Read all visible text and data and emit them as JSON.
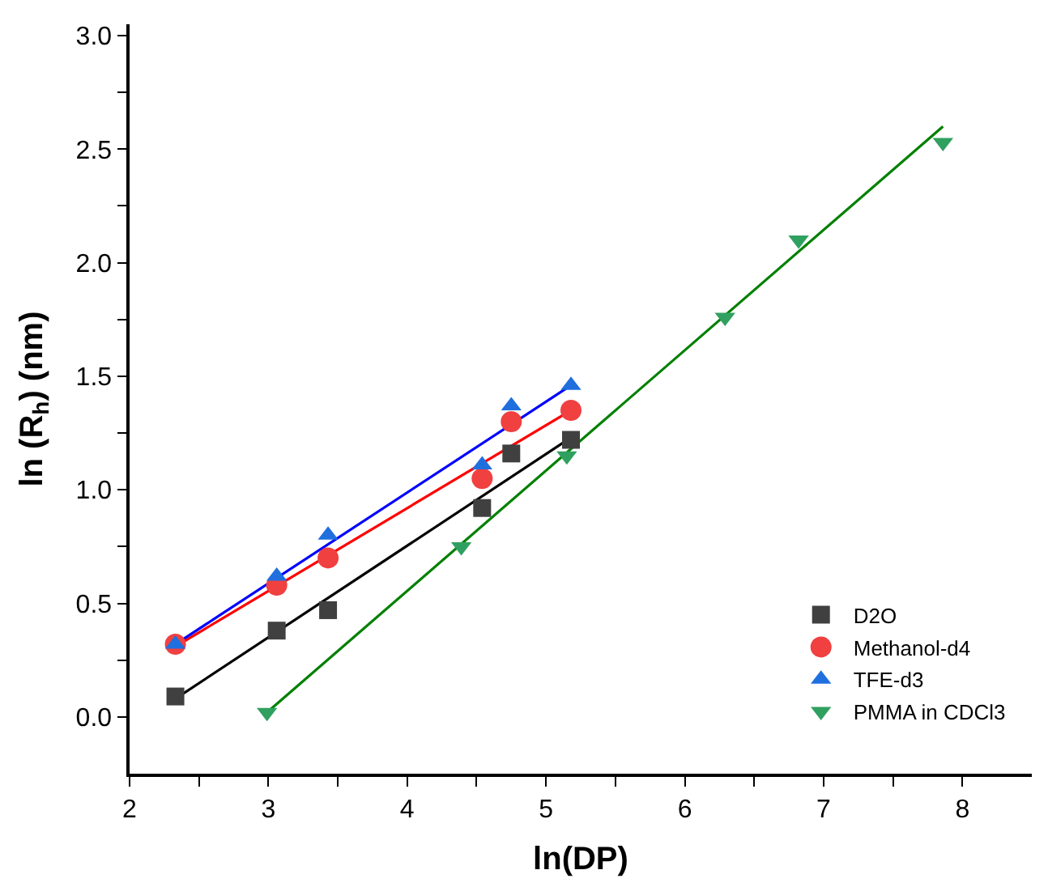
{
  "chart_data": {
    "type": "scatter",
    "xlabel": "ln(DP)",
    "ylabel": "ln (R$_{h}$) (nm)",
    "xlim": [
      2,
      8.5
    ],
    "ylim": [
      -0.25,
      3.05
    ],
    "xticks": [
      2,
      {
        "value": 2.5,
        "label": null
      },
      3,
      {
        "value": 3.5,
        "label": null
      },
      4,
      {
        "value": 4.5,
        "label": null
      },
      5,
      {
        "value": 5.5,
        "label": null
      },
      6,
      {
        "value": 6.5,
        "label": null
      },
      7,
      {
        "value": 7.5,
        "label": null
      },
      8
    ],
    "yticks": [
      {
        "value": 0,
        "label": "0.0"
      },
      {
        "value": 0.25,
        "label": null
      },
      {
        "value": 0.5,
        "label": "0.5"
      },
      {
        "value": 0.75,
        "label": null
      },
      {
        "value": 1,
        "label": "1.0"
      },
      {
        "value": 1.25,
        "label": null
      },
      {
        "value": 1.5,
        "label": "1.5"
      },
      {
        "value": 1.75,
        "label": null
      },
      {
        "value": 2,
        "label": "2.0"
      },
      {
        "value": 2.25,
        "label": null
      },
      {
        "value": 2.5,
        "label": "2.5"
      },
      {
        "value": 2.75,
        "label": null
      },
      {
        "value": 3,
        "label": "3.0"
      }
    ],
    "grid": false,
    "legend": "bottom right",
    "series": [
      {
        "type": "line",
        "marker": "none",
        "color": "#000000",
        "x": [
          2.33,
          5.18
        ],
        "values": [
          0.08,
          1.23
        ]
      },
      {
        "type": "line",
        "marker": "none",
        "color": "#ff0000",
        "x": [
          2.33,
          5.18
        ],
        "values": [
          0.31,
          1.35
        ]
      },
      {
        "type": "line",
        "marker": "none",
        "color": "#0000ff",
        "x": [
          2.33,
          5.18
        ],
        "values": [
          0.32,
          1.46
        ]
      },
      {
        "type": "line",
        "marker": "none",
        "color": "#008000",
        "x": [
          2.99,
          7.86
        ],
        "values": [
          0.02,
          2.6
        ]
      },
      {
        "name": "D2O",
        "marker": "square",
        "color": "#404040",
        "x": [
          2.33,
          3.06,
          3.43,
          4.54,
          4.75,
          5.18
        ],
        "values": [
          0.09,
          0.38,
          0.47,
          0.92,
          1.16,
          1.22
        ]
      },
      {
        "name": "Methanol-d4",
        "marker": "circle",
        "color": "#f04040",
        "x": [
          2.33,
          3.06,
          3.43,
          4.54,
          4.75,
          5.18
        ],
        "values": [
          0.32,
          0.58,
          0.7,
          1.05,
          1.3,
          1.35
        ]
      },
      {
        "name": "TFE-d3",
        "marker": "triangle",
        "color": "#1f6fdf",
        "x": [
          2.33,
          3.06,
          3.43,
          4.54,
          4.75,
          5.18
        ],
        "values": [
          0.32,
          0.62,
          0.8,
          1.11,
          1.37,
          1.46
        ]
      },
      {
        "name": "PMMA in CDCl3",
        "marker": "triangle-down",
        "color": "#30a060",
        "x": [
          2.99,
          4.39,
          5.15,
          6.29,
          6.82,
          7.86
        ],
        "values": [
          0.02,
          0.75,
          1.15,
          1.76,
          2.1,
          2.53
        ]
      }
    ]
  }
}
